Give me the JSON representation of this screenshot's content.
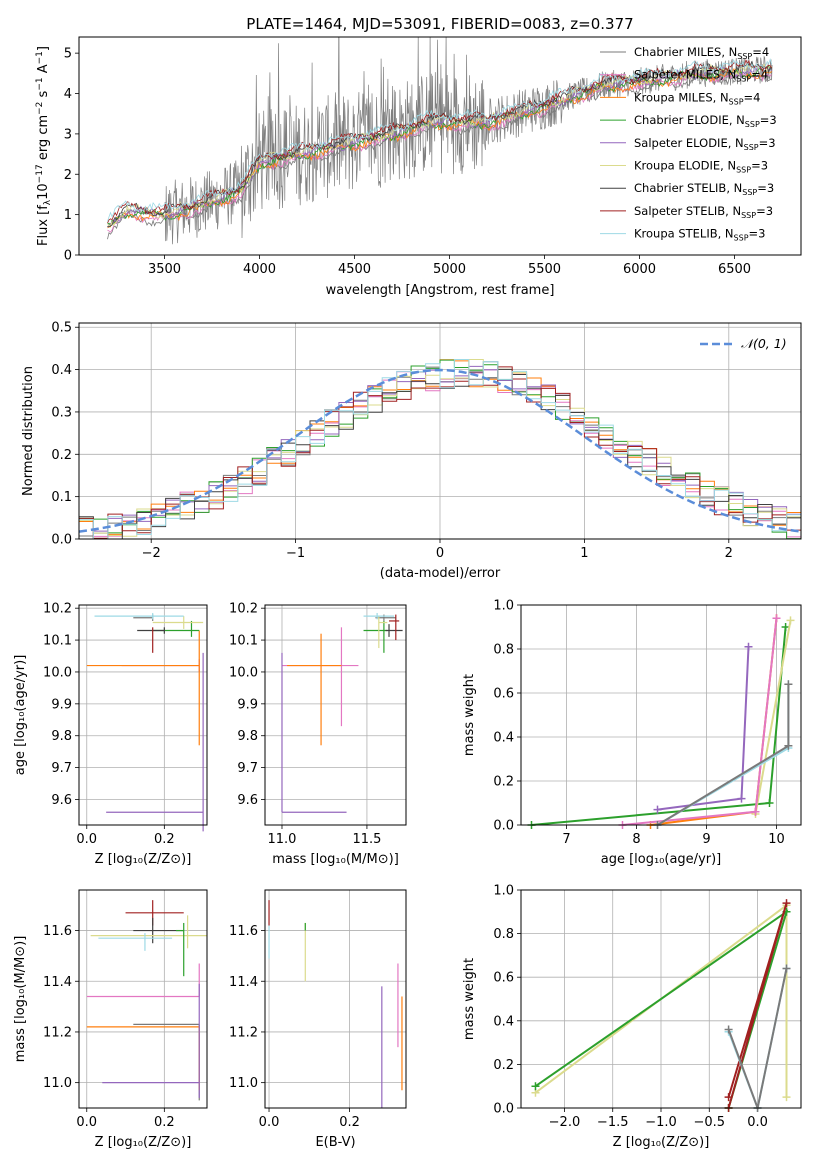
{
  "chart_data": [
    {
      "id": "spectrum",
      "type": "line",
      "title": "PLATE=1464, MJD=53091, FIBERID=0083, z=0.377",
      "xlabel": "wavelength [Angstrom, rest frame]",
      "ylabel_prefix": "Flux [f",
      "ylabel_sub": "λ",
      "ylabel_mid": "10",
      "ylabel_sup": "−17",
      "ylabel_suffix": " erg cm",
      "ylabel_sup2": "−2",
      "ylabel_mid2": " s",
      "ylabel_sup3": "−1",
      "ylabel_mid3": " A",
      "ylabel_sup4": "−1",
      "ylabel_end": "]",
      "xlim": [
        3050,
        6850
      ],
      "ylim": [
        0,
        5.4
      ],
      "xticks": [
        3500,
        4000,
        4500,
        5000,
        5500,
        6000,
        6500
      ],
      "yticks": [
        0,
        1,
        2,
        3,
        4,
        5
      ],
      "grid": false,
      "legend_position": "top-right",
      "data_wavelength_range": [
        3200,
        6700
      ],
      "series": [
        {
          "name": "Chabrier MILES, N",
          "sub": "SSP",
          "tail": "=4",
          "color": "#7a7a7a"
        },
        {
          "name": "Salpeter MILES, N",
          "sub": "SSP",
          "tail": "=4",
          "color": "#e377c2"
        },
        {
          "name": "Kroupa MILES, N",
          "sub": "SSP",
          "tail": "=4",
          "color": "#ff7f0e"
        },
        {
          "name": "Chabrier ELODIE, N",
          "sub": "SSP",
          "tail": "=3",
          "color": "#2ca02c"
        },
        {
          "name": "Salpeter ELODIE, N",
          "sub": "SSP",
          "tail": "=3",
          "color": "#9467bd"
        },
        {
          "name": "Kroupa ELODIE, N",
          "sub": "SSP",
          "tail": "=3",
          "color": "#dbdb8d"
        },
        {
          "name": "Chabrier STELIB, N",
          "sub": "SSP",
          "tail": "=3",
          "color": "#404040"
        },
        {
          "name": "Salpeter STELIB, N",
          "sub": "SSP",
          "tail": "=3",
          "color": "#a02020"
        },
        {
          "name": "Kroupa STELIB, N",
          "sub": "SSP",
          "tail": "=3",
          "color": "#9edae5"
        }
      ],
      "continuum": [
        [
          3200,
          0.7
        ],
        [
          3300,
          1.1
        ],
        [
          3500,
          1.0
        ],
        [
          3700,
          1.25
        ],
        [
          3900,
          1.6
        ],
        [
          4000,
          2.3
        ],
        [
          4300,
          2.6
        ],
        [
          4500,
          2.8
        ],
        [
          4700,
          3.0
        ],
        [
          4900,
          3.3
        ],
        [
          5200,
          3.3
        ],
        [
          5500,
          3.7
        ],
        [
          5800,
          4.2
        ],
        [
          6000,
          4.3
        ],
        [
          6300,
          4.5
        ],
        [
          6700,
          4.6
        ]
      ]
    },
    {
      "id": "residuals",
      "type": "histogram",
      "xlabel": "(data-model)/error",
      "ylabel": "Normed distribution",
      "xlim": [
        -2.5,
        2.5
      ],
      "ylim": [
        0,
        0.51
      ],
      "xticks": [
        -2,
        -1,
        0,
        1,
        2
      ],
      "yticks": [
        0.0,
        0.1,
        0.2,
        0.3,
        0.4,
        0.5
      ],
      "grid": true,
      "legend_position": "top-right",
      "reference": {
        "name": "𝒩(0, 1)",
        "color": "#5b8dd9",
        "mu": 0,
        "sigma": 1
      },
      "bin_width": 0.1
    },
    {
      "id": "age_vs_Z",
      "type": "errorbar",
      "xlabel": "Z [log₁₀(Z/Z⊙)]",
      "ylabel": "age  [log₁₀(age/yr)]",
      "xlim": [
        -0.02,
        0.31
      ],
      "ylim": [
        9.52,
        10.21
      ],
      "xticks": [
        0.0,
        0.2
      ],
      "yticks": [
        9.6,
        9.7,
        9.8,
        9.9,
        10.0,
        10.1,
        10.2
      ],
      "grid": true,
      "points": [
        {
          "x": 0.17,
          "y": 10.17,
          "xerr": [
            0.05,
            0.0
          ],
          "yerr": [
            0.01,
            0.01
          ],
          "color": "#7a7a7a"
        },
        {
          "x": 0.29,
          "y": 10.02,
          "xerr": [
            0.2,
            0.0
          ],
          "yerr": [
            0.02,
            0.02
          ],
          "color": "#e377c2"
        },
        {
          "x": 0.29,
          "y": 10.02,
          "xerr": [
            0.29,
            0.0
          ],
          "yerr": [
            0.25,
            0.11
          ],
          "color": "#ff7f0e"
        },
        {
          "x": 0.27,
          "y": 10.13,
          "xerr": [
            0.1,
            0.02
          ],
          "yerr": [
            0.02,
            0.03
          ],
          "color": "#2ca02c"
        },
        {
          "x": 0.3,
          "y": 9.56,
          "xerr": [
            0.25,
            0.0
          ],
          "yerr": [
            0.06,
            0.5
          ],
          "color": "#9467bd"
        },
        {
          "x": 0.25,
          "y": 10.155,
          "xerr": [
            0.08,
            0.05
          ],
          "yerr": [
            0.02,
            0.02
          ],
          "color": "#dbdb8d"
        },
        {
          "x": 0.2,
          "y": 10.13,
          "xerr": [
            0.07,
            0.0
          ],
          "yerr": [
            0.01,
            0.01
          ],
          "color": "#404040"
        },
        {
          "x": 0.17,
          "y": 10.12,
          "xerr": [
            0.0,
            0.0
          ],
          "yerr": [
            0.06,
            0.02
          ],
          "color": "#a02020"
        },
        {
          "x": 0.17,
          "y": 10.175,
          "xerr": [
            0.15,
            0.08
          ],
          "yerr": [
            0.01,
            0.01
          ],
          "color": "#9edae5"
        }
      ]
    },
    {
      "id": "age_vs_mass",
      "type": "errorbar",
      "xlabel": "mass [log₁₀(M/M⊙)]",
      "ylabel": "",
      "xlim": [
        10.9,
        11.73
      ],
      "ylim": [
        9.52,
        10.21
      ],
      "xticks": [
        11.0,
        11.5
      ],
      "yticks": [
        9.6,
        9.7,
        9.8,
        9.9,
        10.0,
        10.1,
        10.2
      ],
      "grid": true,
      "points": [
        {
          "x": 11.6,
          "y": 10.17,
          "xerr": [
            0.05,
            0.07
          ],
          "yerr": [
            0.01,
            0.01
          ],
          "color": "#7a7a7a"
        },
        {
          "x": 11.35,
          "y": 10.02,
          "xerr": [
            0.35,
            0.1
          ],
          "yerr": [
            0.19,
            0.12
          ],
          "color": "#e377c2"
        },
        {
          "x": 11.23,
          "y": 10.02,
          "xerr": [
            0.2,
            0.12
          ],
          "yerr": [
            0.25,
            0.1
          ],
          "color": "#ff7f0e"
        },
        {
          "x": 11.6,
          "y": 10.13,
          "xerr": [
            0.12,
            0.02
          ],
          "yerr": [
            0.07,
            0.03
          ],
          "color": "#2ca02c"
        },
        {
          "x": 11.0,
          "y": 9.56,
          "xerr": [
            0.0,
            0.38
          ],
          "yerr": [
            0.0,
            0.5
          ],
          "color": "#9467bd"
        },
        {
          "x": 11.57,
          "y": 10.155,
          "xerr": [
            0.0,
            0.05
          ],
          "yerr": [
            0.08,
            0.02
          ],
          "color": "#dbdb8d"
        },
        {
          "x": 11.63,
          "y": 10.13,
          "xerr": [
            0.02,
            0.08
          ],
          "yerr": [
            0.02,
            0.02
          ],
          "color": "#404040"
        },
        {
          "x": 11.67,
          "y": 10.16,
          "xerr": [
            0.04,
            0.02
          ],
          "yerr": [
            0.06,
            0.02
          ],
          "color": "#a02020"
        },
        {
          "x": 11.56,
          "y": 10.175,
          "xerr": [
            0.08,
            0.1
          ],
          "yerr": [
            0.01,
            0.01
          ],
          "color": "#9edae5"
        }
      ]
    },
    {
      "id": "weight_vs_age",
      "type": "line",
      "xlabel": "age  [log₁₀(age/yr)]",
      "ylabel": "mass weight",
      "xlim": [
        6.35,
        10.35
      ],
      "ylim": [
        0,
        1.0
      ],
      "xticks": [
        7,
        8,
        9,
        10
      ],
      "yticks": [
        0.0,
        0.2,
        0.4,
        0.6,
        0.8,
        1.0
      ],
      "grid": true,
      "series": [
        {
          "color": "#2ca02c",
          "pts": [
            [
              6.5,
              0.0
            ],
            [
              9.9,
              0.1
            ],
            [
              10.13,
              0.9
            ]
          ]
        },
        {
          "color": "#9467bd",
          "pts": [
            [
              8.3,
              0.07
            ],
            [
              9.5,
              0.12
            ],
            [
              9.6,
              0.81
            ]
          ]
        },
        {
          "color": "#dbdb8d",
          "pts": [
            [
              9.7,
              0.05
            ],
            [
              10.2,
              0.93
            ]
          ]
        },
        {
          "color": "#ff7f0e",
          "pts": [
            [
              8.2,
              0.0
            ],
            [
              9.7,
              0.06
            ],
            [
              10.0,
              0.94
            ]
          ]
        },
        {
          "color": "#e377c2",
          "pts": [
            [
              7.8,
              0.0
            ],
            [
              9.7,
              0.06
            ],
            [
              10.0,
              0.94
            ]
          ]
        },
        {
          "color": "#9edae5",
          "pts": [
            [
              8.3,
              0.0
            ],
            [
              10.17,
              0.35
            ],
            [
              10.17,
              0.64
            ]
          ]
        },
        {
          "color": "#7a7a7a",
          "pts": [
            [
              8.3,
              0.0
            ],
            [
              10.17,
              0.36
            ],
            [
              10.17,
              0.64
            ]
          ]
        }
      ]
    },
    {
      "id": "mass_vs_Z",
      "type": "errorbar",
      "xlabel": "Z [log₁₀(Z/Z⊙)]",
      "ylabel": "mass [log₁₀(M/M⊙)]",
      "xlim": [
        -0.02,
        0.31
      ],
      "ylim": [
        10.9,
        11.76
      ],
      "xticks": [
        0.0,
        0.2
      ],
      "yticks": [
        11.0,
        11.2,
        11.4,
        11.6
      ],
      "grid": true,
      "points": [
        {
          "x": 0.17,
          "y": 11.67,
          "xerr": [
            0.07,
            0.08
          ],
          "yerr": [
            0.05,
            0.05
          ],
          "color": "#a02020"
        },
        {
          "x": 0.17,
          "y": 11.6,
          "xerr": [
            0.05,
            0.08
          ],
          "yerr": [
            0.05,
            0.05
          ],
          "color": "#404040"
        },
        {
          "x": 0.26,
          "y": 11.58,
          "xerr": [
            0.25,
            0.05
          ],
          "yerr": [
            0.05,
            0.08
          ],
          "color": "#dbdb8d"
        },
        {
          "x": 0.25,
          "y": 11.6,
          "xerr": [
            0.02,
            0.0
          ],
          "yerr": [
            0.18,
            0.03
          ],
          "color": "#2ca02c"
        },
        {
          "x": 0.15,
          "y": 11.57,
          "xerr": [
            0.12,
            0.07
          ],
          "yerr": [
            0.05,
            0.02
          ],
          "color": "#9edae5"
        },
        {
          "x": 0.29,
          "y": 11.34,
          "xerr": [
            0.29,
            0.0
          ],
          "yerr": [
            0.0,
            0.13
          ],
          "color": "#e377c2"
        },
        {
          "x": 0.29,
          "y": 11.23,
          "xerr": [
            0.17,
            0.0
          ],
          "yerr": [
            0.3,
            0.0
          ],
          "color": "#7a7a7a"
        },
        {
          "x": 0.29,
          "y": 11.22,
          "xerr": [
            0.29,
            0.0
          ],
          "yerr": [
            0.25,
            0.0
          ],
          "color": "#ff7f0e"
        },
        {
          "x": 0.29,
          "y": 11.0,
          "xerr": [
            0.25,
            0.0
          ],
          "yerr": [
            0.06,
            0.39
          ],
          "color": "#9467bd"
        }
      ]
    },
    {
      "id": "mass_vs_ebv",
      "type": "errorbar",
      "xlabel": "E(B-V)",
      "ylabel": "",
      "xlim": [
        -0.01,
        0.34
      ],
      "ylim": [
        10.9,
        11.76
      ],
      "xticks": [
        0.0,
        0.2
      ],
      "yticks": [
        11.0,
        11.2,
        11.4,
        11.6
      ],
      "grid": true,
      "points": [
        {
          "x": 0.0,
          "y": 11.67,
          "xerr": [
            0,
            0
          ],
          "yerr": [
            0.05,
            0.05
          ],
          "color": "#a02020"
        },
        {
          "x": 0.0,
          "y": 11.57,
          "xerr": [
            0,
            0
          ],
          "yerr": [
            0.08,
            0.05
          ],
          "color": "#9edae5"
        },
        {
          "x": 0.09,
          "y": 11.58,
          "xerr": [
            0,
            0
          ],
          "yerr": [
            0.18,
            0.05
          ],
          "color": "#dbdb8d"
        },
        {
          "x": 0.09,
          "y": 11.6,
          "xerr": [
            0,
            0
          ],
          "yerr": [
            0.0,
            0.03
          ],
          "color": "#2ca02c"
        },
        {
          "x": 0.28,
          "y": 11.0,
          "xerr": [
            0,
            0
          ],
          "yerr": [
            0.1,
            0.38
          ],
          "color": "#9467bd"
        },
        {
          "x": 0.32,
          "y": 11.34,
          "xerr": [
            0,
            0
          ],
          "yerr": [
            0.2,
            0.13
          ],
          "color": "#e377c2"
        },
        {
          "x": 0.33,
          "y": 11.22,
          "xerr": [
            0,
            0
          ],
          "yerr": [
            0.25,
            0.12
          ],
          "color": "#ff7f0e"
        }
      ]
    },
    {
      "id": "weight_vs_Z",
      "type": "line",
      "xlabel": "Z [log₁₀(Z/Z⊙)]",
      "ylabel": "mass weight",
      "xlim": [
        -2.45,
        0.45
      ],
      "ylim": [
        0,
        1.0
      ],
      "xticks": [
        -2.0,
        -1.5,
        -1.0,
        -0.5,
        0.0
      ],
      "yticks": [
        0.0,
        0.2,
        0.4,
        0.6,
        0.8,
        1.0
      ],
      "grid": true,
      "series": [
        {
          "color": "#dbdb8d",
          "pts": [
            [
              -2.3,
              0.07
            ],
            [
              0.3,
              0.93
            ],
            [
              0.3,
              0.05
            ]
          ]
        },
        {
          "color": "#2ca02c",
          "pts": [
            [
              -2.3,
              0.1
            ],
            [
              0.3,
              0.9
            ],
            [
              -0.3,
              0.0
            ]
          ]
        },
        {
          "color": "#a02020",
          "pts": [
            [
              -0.3,
              0.0
            ],
            [
              0.3,
              0.94
            ],
            [
              -0.3,
              0.05
            ]
          ]
        },
        {
          "color": "#9edae5",
          "pts": [
            [
              -0.3,
              0.35
            ],
            [
              0.0,
              0.0
            ],
            [
              0.3,
              0.64
            ]
          ]
        },
        {
          "color": "#7a7a7a",
          "pts": [
            [
              -0.3,
              0.36
            ],
            [
              0.0,
              0.0
            ],
            [
              0.3,
              0.64
            ]
          ]
        }
      ]
    }
  ]
}
